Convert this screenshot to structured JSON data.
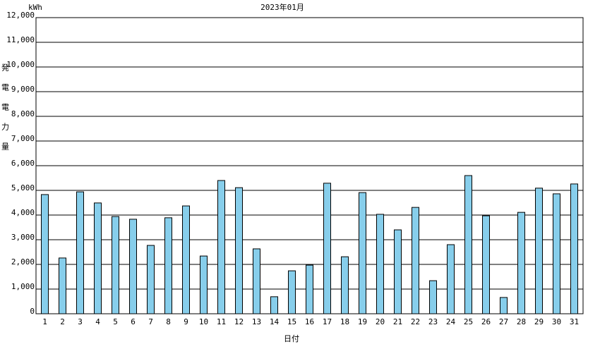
{
  "chart_data": {
    "type": "bar",
    "title": "2023年01月",
    "unit": "kWh",
    "y_label": "発電電力量",
    "x_label": "日付",
    "categories": [
      "1",
      "2",
      "3",
      "4",
      "5",
      "6",
      "7",
      "8",
      "9",
      "10",
      "11",
      "12",
      "13",
      "14",
      "15",
      "16",
      "17",
      "18",
      "19",
      "20",
      "21",
      "22",
      "23",
      "24",
      "25",
      "26",
      "27",
      "28",
      "29",
      "30",
      "31"
    ],
    "values": [
      4830,
      2260,
      4940,
      4490,
      3940,
      3830,
      2770,
      3890,
      4370,
      2340,
      5400,
      5110,
      2630,
      690,
      1740,
      1970,
      5290,
      2310,
      4910,
      4030,
      3400,
      4310,
      1340,
      2800,
      5600,
      3970,
      660,
      4110,
      5090,
      4860,
      5260
    ],
    "color": "#87ceeb",
    "ylim": [
      0,
      12000
    ],
    "yticks": [
      0,
      {
        "value": 1000,
        "label": "1,000"
      },
      {
        "value": 2000,
        "label": "2,000"
      },
      {
        "value": 3000,
        "label": "3,000"
      },
      {
        "value": 4000,
        "label": "4,000"
      },
      {
        "value": 5000,
        "label": "5,000"
      },
      {
        "value": 6000,
        "label": "6,000"
      },
      {
        "value": 7000,
        "label": "7,000"
      },
      {
        "value": 8000,
        "label": "8,000"
      },
      {
        "value": 9000,
        "label": "9,000"
      },
      {
        "value": 10000,
        "label": "10,000"
      },
      {
        "value": 11000,
        "label": "11,000"
      },
      {
        "value": 12000,
        "label": "12,000"
      }
    ],
    "grid": true
  }
}
